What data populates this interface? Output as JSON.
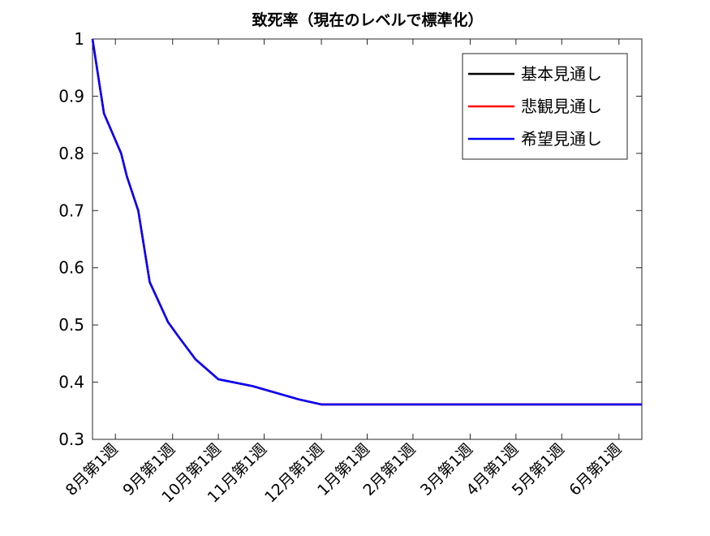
{
  "chart_data": {
    "type": "line",
    "title": "致死率（現在のレベルで標準化）",
    "xlabel": "",
    "ylabel": "",
    "ylim": [
      0.3,
      1
    ],
    "y_ticks": [
      "0.3",
      "0.4",
      "0.5",
      "0.6",
      "0.7",
      "0.8",
      "0.9",
      "1"
    ],
    "x_tick_labels": [
      "8月第1週",
      "9月第1週",
      "10月第1週",
      "11月第1週",
      "12月第1週",
      "1月第1週",
      "2月第1週",
      "3月第1週",
      "4月第1週",
      "5月第1週",
      "6月第1週"
    ],
    "x_tick_weeks": [
      4,
      9,
      13,
      17,
      22,
      26,
      30,
      35,
      39,
      43,
      48
    ],
    "xlim": [
      2,
      50
    ],
    "x_unit": "週",
    "legend_position": "top-right",
    "grid": false,
    "series": [
      {
        "name": "基本見通し",
        "color": "#000000",
        "x": [
          2,
          3,
          4.5,
          5,
          6,
          7,
          8.6,
          9.5,
          11,
          13,
          16,
          20,
          22,
          50
        ],
        "values": [
          1.0,
          0.87,
          0.8,
          0.76,
          0.7,
          0.575,
          0.505,
          0.48,
          0.44,
          0.405,
          0.393,
          0.37,
          0.361,
          0.361
        ]
      },
      {
        "name": "悲観見通し",
        "color": "#ff0000",
        "x": [
          2,
          3,
          4.5,
          5,
          6,
          7,
          8.6,
          9.5,
          11,
          13,
          16,
          20,
          22,
          50
        ],
        "values": [
          1.0,
          0.87,
          0.8,
          0.76,
          0.7,
          0.575,
          0.505,
          0.48,
          0.44,
          0.405,
          0.393,
          0.37,
          0.361,
          0.361
        ]
      },
      {
        "name": "希望見通し",
        "color": "#0000ff",
        "x": [
          2,
          3,
          4.5,
          5,
          6,
          7,
          8.6,
          9.5,
          11,
          13,
          16,
          20,
          22,
          50
        ],
        "values": [
          1.0,
          0.87,
          0.8,
          0.76,
          0.7,
          0.575,
          0.505,
          0.48,
          0.44,
          0.405,
          0.393,
          0.37,
          0.361,
          0.361
        ]
      }
    ]
  }
}
